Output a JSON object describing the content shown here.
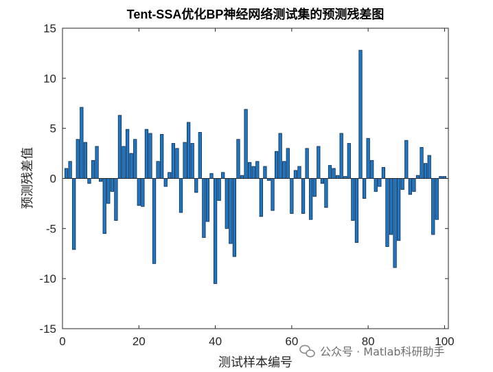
{
  "chart_data": {
    "type": "bar",
    "title": "Tent-SSA优化BP神经网络测试集的预测残差图",
    "xlabel": "测试样本编号",
    "ylabel": "预测残差值",
    "xlim": [
      0,
      101
    ],
    "ylim": [
      -15,
      15
    ],
    "xticks": [
      0,
      20,
      40,
      60,
      80,
      100
    ],
    "yticks": [
      -15,
      -10,
      -5,
      0,
      5,
      10,
      15
    ],
    "grid": false,
    "bar_color": "#1f77c4",
    "bar_edge_color": "#0d2a4a",
    "x": [
      1,
      2,
      3,
      4,
      5,
      6,
      7,
      8,
      9,
      10,
      11,
      12,
      13,
      14,
      15,
      16,
      17,
      18,
      19,
      20,
      21,
      22,
      23,
      24,
      25,
      26,
      27,
      28,
      29,
      30,
      31,
      32,
      33,
      34,
      35,
      36,
      37,
      38,
      39,
      40,
      41,
      42,
      43,
      44,
      45,
      46,
      47,
      48,
      49,
      50,
      51,
      52,
      53,
      54,
      55,
      56,
      57,
      58,
      59,
      60,
      61,
      62,
      63,
      64,
      65,
      66,
      67,
      68,
      69,
      70,
      71,
      72,
      73,
      74,
      75,
      76,
      77,
      78,
      79,
      80,
      81,
      82,
      83,
      84,
      85,
      86,
      87,
      88,
      89,
      90,
      91,
      92,
      93,
      94,
      95,
      96,
      97,
      98,
      99,
      100
    ],
    "values": [
      1.0,
      1.7,
      -7.1,
      3.9,
      7.1,
      3.6,
      -0.5,
      1.8,
      3.2,
      -0.3,
      -5.5,
      -2.5,
      -1.3,
      -4.2,
      6.3,
      3.2,
      4.9,
      2.5,
      3.9,
      -2.7,
      -2.8,
      4.9,
      4.5,
      -8.5,
      1.7,
      4.4,
      -0.8,
      0.6,
      3.5,
      3.0,
      -3.4,
      3.6,
      5.6,
      3.5,
      -1.4,
      4.6,
      -5.9,
      -4.3,
      0.5,
      -10.5,
      -2.2,
      0.6,
      -5.0,
      -6.5,
      -7.8,
      3.9,
      0.3,
      6.9,
      1.6,
      1.2,
      1.7,
      -3.8,
      1.2,
      -0.2,
      -3.2,
      2.7,
      4.5,
      1.7,
      3.0,
      -3.5,
      0.8,
      1.2,
      -3.5,
      3.0,
      -4.1,
      -1.8,
      3.2,
      -0.5,
      -2.9,
      1.3,
      1.0,
      0.3,
      4.5,
      0.2,
      3.5,
      -4.2,
      -6.4,
      12.8,
      -2.0,
      4.0,
      1.8,
      -1.3,
      -0.8,
      1.1,
      -6.8,
      -5.6,
      -8.9,
      -6.2,
      -1.1,
      3.8,
      -1.6,
      -1.3,
      0.3,
      3.1,
      1.5,
      2.3,
      -5.6,
      -4.1,
      0.2,
      0.2
    ]
  },
  "watermark": {
    "icon": "wechat-icon",
    "text": "公众号 · Matlab科研助手"
  }
}
